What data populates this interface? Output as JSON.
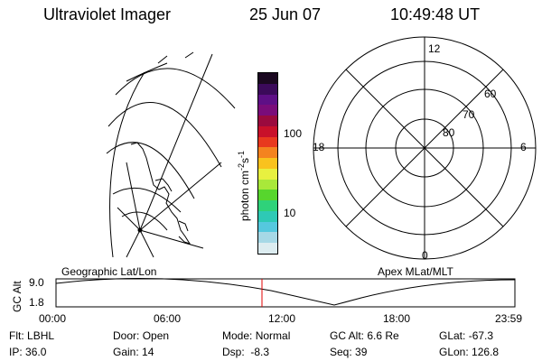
{
  "header": {
    "instrument": "Ultraviolet Imager",
    "date": "25 Jun 07",
    "time": "10:49:48 UT"
  },
  "colorbar": {
    "label_main": "photon cm",
    "label_exp1": "-2",
    "label_s": "s",
    "label_exp2": "-1",
    "ticks": [
      "100",
      "10"
    ],
    "colors": [
      "#1a0820",
      "#3b0a5a",
      "#5e0f86",
      "#7a0c7a",
      "#9a0a3e",
      "#c8102a",
      "#e8391e",
      "#f4831f",
      "#f9c21e",
      "#e8f040",
      "#a9e83a",
      "#57d62d",
      "#2fd27a",
      "#2ec9b5",
      "#55c8de",
      "#a6d8e6",
      "#dcecf0"
    ]
  },
  "polar_plot": {
    "mlt_labels": {
      "top": "12",
      "left": "18",
      "right": "6",
      "bottom": "0"
    },
    "lat_labels": [
      "60",
      "70",
      "80"
    ]
  },
  "panels": {
    "left_title": "Geographic Lat/Lon",
    "right_title": "Apex MLat/MLT"
  },
  "timeline": {
    "axis_label": "GC Alt",
    "y_ticks": [
      "9.0",
      "1.8"
    ],
    "x_ticks": [
      "00:00",
      "06:00",
      "12:00",
      "18:00",
      "23:59"
    ],
    "marker_time": "10:49",
    "marker_color": "#e00000"
  },
  "info": {
    "filter_label": "Flt:",
    "filter_value": "LBHL",
    "ip_label": "IP:",
    "ip_value": "36.0",
    "door_label": "Door:",
    "door_value": "Open",
    "gain_label": "Gain:",
    "gain_value": "14",
    "mode_label": "Mode:",
    "mode_value": "Normal",
    "dsp_label": "Dsp:",
    "dsp_value": "-8.3",
    "gcalt_label": "GC Alt:",
    "gcalt_value": "6.6 Re",
    "seq_label": "Seq:",
    "seq_value": "39",
    "glat_label": "GLat:",
    "glat_value": "-67.3",
    "glon_label": "GLon:",
    "glon_value": "126.8"
  }
}
